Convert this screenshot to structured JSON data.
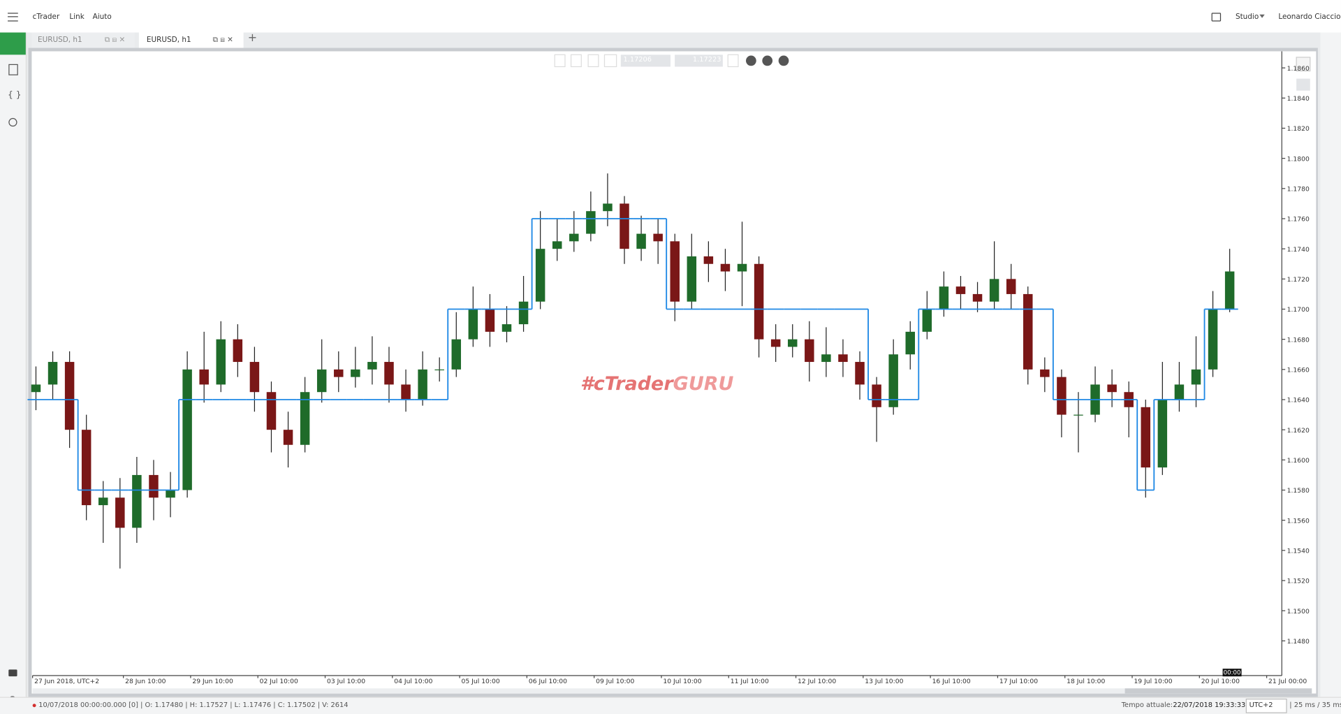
{
  "menu": {
    "items": [
      "cTrader",
      "Link",
      "Aiuto"
    ]
  },
  "user": {
    "workspace": "Studio",
    "name": "Leonardo Ciaccio"
  },
  "tabs": [
    "EURUSD, h1",
    "EURUSD, h1"
  ],
  "toolbar": {
    "bid": "1.17206",
    "ask": "1.17223"
  },
  "watermark": {
    "prefix": "#cTrader",
    "suffix": "GURU"
  },
  "chart_data": {
    "type": "candlestick",
    "open": [
      1.1645,
      1.165,
      1.1665,
      1.162,
      1.157,
      1.1575,
      1.1555,
      1.159,
      1.1575,
      1.158,
      1.166,
      1.165,
      1.168,
      1.1665,
      1.1645,
      1.162,
      1.161,
      1.1645,
      1.166,
      1.1655,
      1.166,
      1.1665,
      1.165,
      1.164,
      1.166,
      1.166,
      1.168,
      1.17,
      1.1685,
      1.169,
      1.1705,
      1.174,
      1.1745,
      1.175,
      1.1765,
      1.177,
      1.174,
      1.175,
      1.1745,
      1.1705,
      1.1735,
      1.173,
      1.1725,
      1.173,
      1.168,
      1.1675,
      1.168,
      1.1665,
      1.167,
      1.1665,
      1.165,
      1.1635,
      1.167,
      1.1685,
      1.17,
      1.1715,
      1.171,
      1.1705,
      1.172,
      1.171,
      1.166,
      1.1655,
      1.163,
      1.163,
      1.165,
      1.1645,
      1.1635,
      1.1595,
      1.164,
      1.165,
      1.166,
      1.17
    ],
    "high": [
      1.1662,
      1.1672,
      1.1672,
      1.163,
      1.1586,
      1.1588,
      1.1602,
      1.16,
      1.1592,
      1.1672,
      1.1685,
      1.1692,
      1.169,
      1.1675,
      1.1652,
      1.1632,
      1.1655,
      1.168,
      1.1672,
      1.1675,
      1.1682,
      1.1675,
      1.166,
      1.1672,
      1.1668,
      1.1698,
      1.1715,
      1.171,
      1.1702,
      1.1722,
      1.1765,
      1.176,
      1.1765,
      1.1778,
      1.179,
      1.1775,
      1.1762,
      1.176,
      1.175,
      1.175,
      1.1745,
      1.174,
      1.1758,
      1.1735,
      1.169,
      1.169,
      1.1692,
      1.1688,
      1.168,
      1.1672,
      1.1655,
      1.168,
      1.1692,
      1.1712,
      1.1725,
      1.1722,
      1.1718,
      1.1745,
      1.173,
      1.1715,
      1.1668,
      1.166,
      1.1645,
      1.1662,
      1.166,
      1.1652,
      1.164,
      1.1665,
      1.1665,
      1.1682,
      1.1712,
      1.174
    ],
    "low": [
      1.1633,
      1.164,
      1.1608,
      1.156,
      1.1545,
      1.1528,
      1.1545,
      1.156,
      1.1562,
      1.1575,
      1.1638,
      1.1645,
      1.1655,
      1.1632,
      1.1605,
      1.1595,
      1.1605,
      1.1638,
      1.1645,
      1.1648,
      1.165,
      1.1638,
      1.1632,
      1.1636,
      1.1652,
      1.1655,
      1.1675,
      1.1675,
      1.1678,
      1.1685,
      1.17,
      1.1732,
      1.1738,
      1.1745,
      1.1755,
      1.173,
      1.1732,
      1.173,
      1.1692,
      1.17,
      1.1718,
      1.1712,
      1.1702,
      1.1668,
      1.1665,
      1.1668,
      1.1652,
      1.1655,
      1.1655,
      1.164,
      1.1612,
      1.163,
      1.166,
      1.168,
      1.1695,
      1.17,
      1.1698,
      1.17,
      1.17,
      1.165,
      1.1645,
      1.1615,
      1.1605,
      1.1625,
      1.1635,
      1.1615,
      1.1575,
      1.159,
      1.1632,
      1.1635,
      1.1655,
      1.1698
    ],
    "close": [
      1.165,
      1.1665,
      1.162,
      1.157,
      1.1575,
      1.1555,
      1.159,
      1.1575,
      1.158,
      1.166,
      1.165,
      1.168,
      1.1665,
      1.1645,
      1.162,
      1.161,
      1.1645,
      1.166,
      1.1655,
      1.166,
      1.1665,
      1.165,
      1.164,
      1.166,
      1.166,
      1.168,
      1.17,
      1.1685,
      1.169,
      1.1705,
      1.174,
      1.1745,
      1.175,
      1.1765,
      1.177,
      1.174,
      1.175,
      1.1745,
      1.1705,
      1.1735,
      1.173,
      1.1725,
      1.173,
      1.168,
      1.1675,
      1.168,
      1.1665,
      1.167,
      1.1665,
      1.165,
      1.1635,
      1.167,
      1.1685,
      1.17,
      1.1715,
      1.171,
      1.1705,
      1.172,
      1.171,
      1.166,
      1.1655,
      1.163,
      1.163,
      1.165,
      1.1645,
      1.1635,
      1.1595,
      1.164,
      1.165,
      1.166,
      1.17,
      1.1725
    ],
    "overlay": {
      "color": "#1e88e5",
      "values": [
        1.164,
        1.164,
        1.164,
        1.158,
        1.158,
        1.158,
        1.158,
        1.158,
        1.158,
        1.164,
        1.164,
        1.164,
        1.164,
        1.164,
        1.164,
        1.164,
        1.164,
        1.164,
        1.164,
        1.164,
        1.164,
        1.164,
        1.164,
        1.164,
        1.164,
        1.17,
        1.17,
        1.17,
        1.17,
        1.17,
        1.176,
        1.176,
        1.176,
        1.176,
        1.176,
        1.176,
        1.176,
        1.176,
        1.17,
        1.17,
        1.17,
        1.17,
        1.17,
        1.17,
        1.17,
        1.17,
        1.17,
        1.17,
        1.17,
        1.17,
        1.164,
        1.164,
        1.164,
        1.17,
        1.17,
        1.17,
        1.17,
        1.17,
        1.17,
        1.17,
        1.17,
        1.164,
        1.164,
        1.164,
        1.164,
        1.164,
        1.158,
        1.164,
        1.164,
        1.164,
        1.17,
        1.17
      ]
    },
    "colors": {
      "up": "#1f6b2a",
      "down": "#7a1717",
      "wick": "#222222"
    },
    "ylim": [
      1.1457,
      1.1871
    ],
    "yticks": [
      {
        "value": 1.148,
        "label": "1.1480"
      },
      {
        "value": 1.15,
        "label": "1.1500"
      },
      {
        "value": 1.152,
        "label": "1.1520"
      },
      {
        "value": 1.154,
        "label": "1.1540"
      },
      {
        "value": 1.156,
        "label": "1.1560"
      },
      {
        "value": 1.158,
        "label": "1.1580"
      },
      {
        "value": 1.16,
        "label": "1.1600"
      },
      {
        "value": 1.162,
        "label": "1.1620"
      },
      {
        "value": 1.164,
        "label": "1.1640"
      },
      {
        "value": 1.166,
        "label": "1.1660"
      },
      {
        "value": 1.168,
        "label": "1.1680"
      },
      {
        "value": 1.17,
        "label": "1.1700"
      },
      {
        "value": 1.172,
        "label": "1.1720"
      },
      {
        "value": 1.174,
        "label": "1.1740"
      },
      {
        "value": 1.176,
        "label": "1.1760"
      },
      {
        "value": 1.178,
        "label": "1.1780"
      },
      {
        "value": 1.18,
        "label": "1.1800"
      },
      {
        "value": 1.182,
        "label": "1.1820"
      },
      {
        "value": 1.184,
        "label": "1.1840"
      },
      {
        "value": 1.186,
        "label": "1.1860"
      }
    ],
    "xlim": [
      -0.2,
      74.1
    ],
    "xticks": [
      {
        "value": -0.2,
        "label": "27 Jun 2018, UTC+2"
      },
      {
        "value": 5.2,
        "label": "28 Jun 10:00"
      },
      {
        "value": 9.2,
        "label": "29 Jun 10:00"
      },
      {
        "value": 13.2,
        "label": "02 Jul 10:00"
      },
      {
        "value": 17.2,
        "label": "03 Jul 10:00"
      },
      {
        "value": 21.2,
        "label": "04 Jul 10:00"
      },
      {
        "value": 25.2,
        "label": "05 Jul 10:00"
      },
      {
        "value": 29.2,
        "label": "06 Jul 10:00"
      },
      {
        "value": 33.2,
        "label": "09 Jul 10:00"
      },
      {
        "value": 37.2,
        "label": "10 Jul 10:00"
      },
      {
        "value": 41.2,
        "label": "11 Jul 10:00"
      },
      {
        "value": 45.2,
        "label": "12 Jul 10:00"
      },
      {
        "value": 49.2,
        "label": "13 Jul 10:00"
      },
      {
        "value": 53.2,
        "label": "16 Jul 10:00"
      },
      {
        "value": 57.2,
        "label": "17 Jul 10:00"
      },
      {
        "value": 61.2,
        "label": "18 Jul 10:00"
      },
      {
        "value": 65.2,
        "label": "19 Jul 10:00"
      },
      {
        "value": 69.2,
        "label": "20 Jul 10:00"
      },
      {
        "value": 73.2,
        "label": "21 Jul 00:00"
      }
    ],
    "crosshair_label": "00:00"
  },
  "status": {
    "bar": "10/07/2018 00:00:00.000 [0] | O: 1.17480 | H: 1.17527 | L: 1.17476 | C: 1.17502 | V: 2614",
    "time_label": "Tempo attuale:",
    "time": "22/07/2018 19:33:33",
    "timezone": "UTC+2",
    "latency": "| 25 ms / 35 ms"
  }
}
